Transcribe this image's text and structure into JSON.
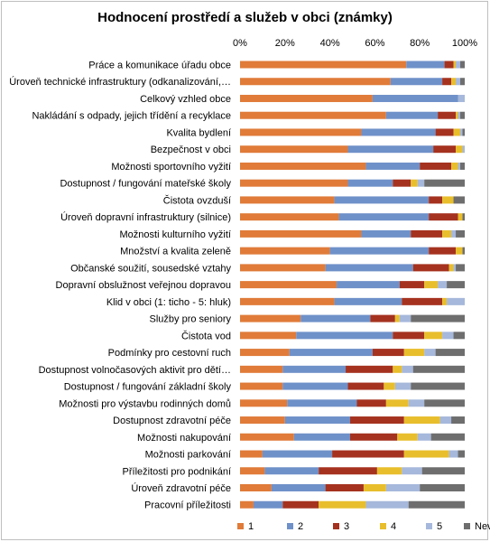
{
  "chart_data": {
    "type": "bar",
    "orientation": "horizontal",
    "stacked": "percent",
    "title": "Hodnocení prostředí a služeb v obci (známky)",
    "xlim": [
      0,
      100
    ],
    "xticks": [
      "0%",
      "20%",
      "40%",
      "60%",
      "80%",
      "100%"
    ],
    "legend_position": "bottom",
    "grid": false,
    "categories": [
      "Práce a komunikace úřadu obce",
      "Úroveň technické infrastruktury (odkanalizování,…",
      "Celkový vzhled obce",
      "Nakládání s odpady, jejich třídění a recyklace",
      "Kvalita bydlení",
      "Bezpečnost v obci",
      "Možnosti sportovního vyžití",
      "Dostupnost / fungování mateřské školy",
      "Čistota ovzduší",
      "Úroveň dopravní infrastruktury (silnice)",
      "Možnosti kulturního vyžití",
      "Množství a kvalita zeleně",
      "Občanské soužití, sousedské vztahy",
      "Dopravní obslužnost veřejnou dopravou",
      "Klid v obci (1: ticho - 5: hluk)",
      "Služby pro seniory",
      "Čistota vod",
      "Podmínky pro cestovní ruch",
      "Dostupnost volnočasových aktivit pro dětí…",
      "Dostupnost / fungování základní školy",
      "Možnosti pro výstavbu rodinných domů",
      "Dostupnost zdravotní péče",
      "Možnosti nakupování",
      "Možnosti parkování",
      "Příležitosti pro podnikání",
      "Úroveň zdravotní péče",
      "Pracovní příležitosti"
    ],
    "series": [
      {
        "name": "1",
        "color": "#E07B39",
        "values": [
          74,
          67,
          59,
          65,
          54,
          48,
          56,
          48,
          42,
          44,
          54,
          40,
          38,
          43,
          42,
          27,
          25,
          22,
          19,
          19,
          21,
          20,
          24,
          10,
          11,
          14,
          6
        ]
      },
      {
        "name": "2",
        "color": "#6F91C9",
        "values": [
          17,
          23,
          38,
          23,
          33,
          38,
          24,
          20,
          42,
          40,
          22,
          44,
          39,
          28,
          30,
          31,
          43,
          37,
          28,
          29,
          31,
          29,
          25,
          31,
          24,
          24,
          13
        ]
      },
      {
        "name": "3",
        "color": "#A5321F",
        "values": [
          4,
          4,
          0,
          8,
          8,
          10,
          14,
          8,
          6,
          13,
          14,
          12,
          16,
          11,
          18,
          11,
          14,
          14,
          21,
          16,
          13,
          24,
          21,
          32,
          26,
          17,
          16
        ]
      },
      {
        "name": "4",
        "color": "#E8BE2C",
        "values": [
          1,
          2,
          0,
          1,
          3,
          3,
          3,
          3,
          5,
          2,
          4,
          3,
          2,
          6,
          2,
          2,
          8,
          9,
          4,
          5,
          10,
          16,
          9,
          20,
          11,
          10,
          21
        ]
      },
      {
        "name": "5",
        "color": "#A6B8DB",
        "values": [
          2,
          2,
          3,
          1,
          1,
          1,
          1,
          3,
          0,
          0,
          2,
          0,
          1,
          4,
          8,
          5,
          5,
          5,
          5,
          7,
          7,
          5,
          6,
          4,
          9,
          15,
          19
        ]
      },
      {
        "name": "Nevím",
        "color": "#6E6E6E",
        "values": [
          2,
          2,
          0,
          2,
          1,
          0,
          2,
          18,
          5,
          1,
          4,
          1,
          4,
          8,
          0,
          24,
          5,
          13,
          23,
          24,
          18,
          6,
          15,
          3,
          19,
          20,
          25
        ]
      }
    ]
  }
}
